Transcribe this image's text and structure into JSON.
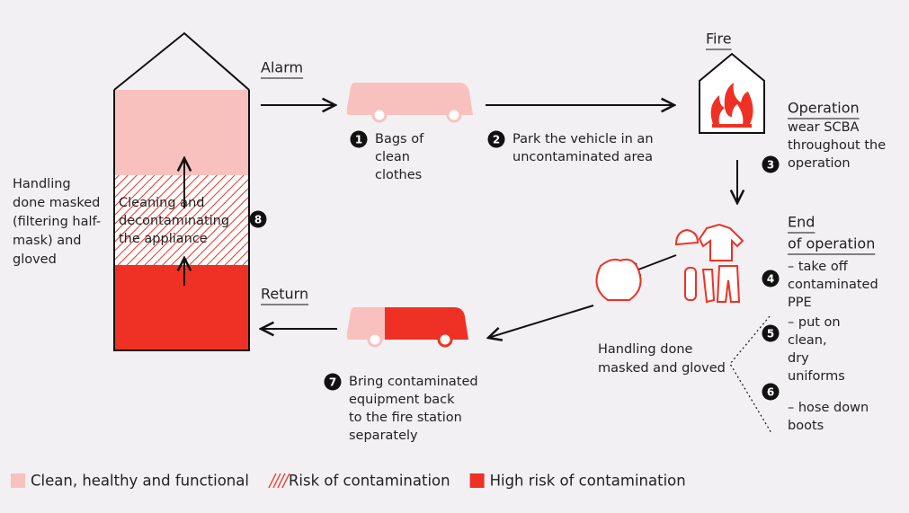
{
  "labels": {
    "alarm": "Alarm",
    "fire": "Fire",
    "return": "Return",
    "operation": "Operation",
    "end_of_operation": [
      "End",
      "of operation"
    ]
  },
  "notes": {
    "station": [
      "Handling",
      "done masked",
      "(filtering half-",
      "mask) and",
      "gloved"
    ],
    "handling": [
      "Handling done",
      "masked and gloved"
    ]
  },
  "steps": [
    {
      "number": "1",
      "lines": [
        "Bags of",
        "clean",
        "clothes"
      ]
    },
    {
      "number": "2",
      "lines": [
        "Park the vehicle in an",
        "uncontaminated area"
      ]
    },
    {
      "number": "3",
      "lines": [
        "wear SCBA",
        "throughout the",
        "operation"
      ]
    },
    {
      "number": "4",
      "lines": [
        "– take off",
        "contaminated",
        "PPE"
      ]
    },
    {
      "number": "5",
      "lines": [
        "– put on",
        "clean,",
        "dry",
        "uniforms"
      ]
    },
    {
      "number": "6",
      "lines": [
        "– hose down",
        "boots"
      ]
    },
    {
      "number": "7",
      "lines": [
        "Bring contaminated",
        "equipment back",
        "to the fire station",
        "separately"
      ]
    },
    {
      "number": "8",
      "lines": [
        "Cleaning and",
        "decontaminating",
        "the appliance"
      ]
    }
  ],
  "legend": [
    {
      "label": "Clean, healthy and functional",
      "color": "#f8c1bd"
    },
    {
      "label": "Risk of contamination",
      "color": "#ee3124"
    },
    {
      "label": "High risk of contamination",
      "color": "#ee3124"
    }
  ]
}
